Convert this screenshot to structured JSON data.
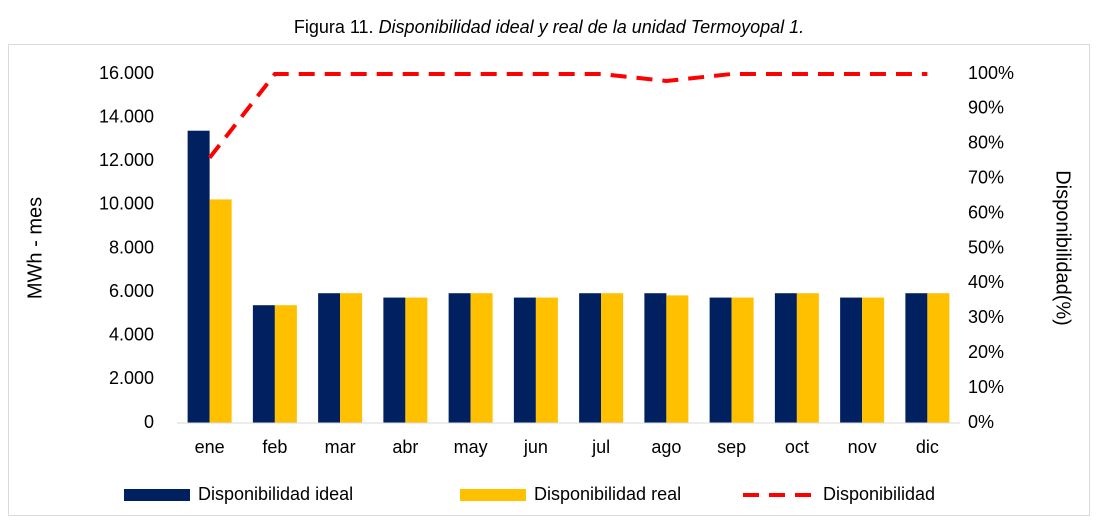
{
  "chart_data": {
    "type": "bar",
    "title_number": "Figura 11.",
    "title": "Disponibilidad ideal y real de la unidad Termoyopal 1.",
    "y_label": "MWh - mes",
    "y2_label": "Disponibilidad(%)",
    "categories": [
      "ene",
      "feb",
      "mar",
      "abr",
      "may",
      "jun",
      "jul",
      "ago",
      "sep",
      "oct",
      "nov",
      "dic"
    ],
    "series": [
      {
        "name": "Disponibilidad ideal",
        "type": "bar",
        "color": "#002060",
        "values": [
          13400,
          5400,
          5950,
          5750,
          5950,
          5750,
          5950,
          5950,
          5750,
          5950,
          5750,
          5950
        ]
      },
      {
        "name": "Disponibilidad real",
        "type": "bar",
        "color": "#FFC000",
        "values": [
          10250,
          5400,
          5950,
          5750,
          5950,
          5750,
          5950,
          5850,
          5750,
          5950,
          5750,
          5950
        ]
      },
      {
        "name": "Disponibilidad",
        "type": "line",
        "axis": "y2",
        "color": "#FF0000",
        "dashed": true,
        "values": [
          76,
          100,
          100,
          100,
          100,
          100,
          100,
          98,
          100,
          100,
          100,
          100
        ]
      }
    ],
    "ylim": [
      0,
      16000
    ],
    "yticks": [
      0,
      {
        "value": 2000,
        "label": "2.000"
      },
      {
        "value": 4000,
        "label": "4.000"
      },
      {
        "value": 6000,
        "label": "6.000"
      },
      {
        "value": 8000,
        "label": "8.000"
      },
      {
        "value": 10000,
        "label": "10.000"
      },
      {
        "value": 12000,
        "label": "12.000"
      },
      {
        "value": 14000,
        "label": "14.000"
      },
      {
        "value": 16000,
        "label": "16.000"
      }
    ],
    "y2lim": [
      0,
      100
    ],
    "y2ticks": [
      {
        "value": 0,
        "label": "0%"
      },
      {
        "value": 10,
        "label": "10%"
      },
      {
        "value": 20,
        "label": "20%"
      },
      {
        "value": 30,
        "label": "30%"
      },
      {
        "value": 40,
        "label": "40%"
      },
      {
        "value": 50,
        "label": "50%"
      },
      {
        "value": 60,
        "label": "60%"
      },
      {
        "value": 70,
        "label": "70%"
      },
      {
        "value": 80,
        "label": "80%"
      },
      {
        "value": 90,
        "label": "90%"
      },
      {
        "value": 100,
        "label": "100%"
      }
    ],
    "grid": false,
    "legend": "bottom"
  }
}
